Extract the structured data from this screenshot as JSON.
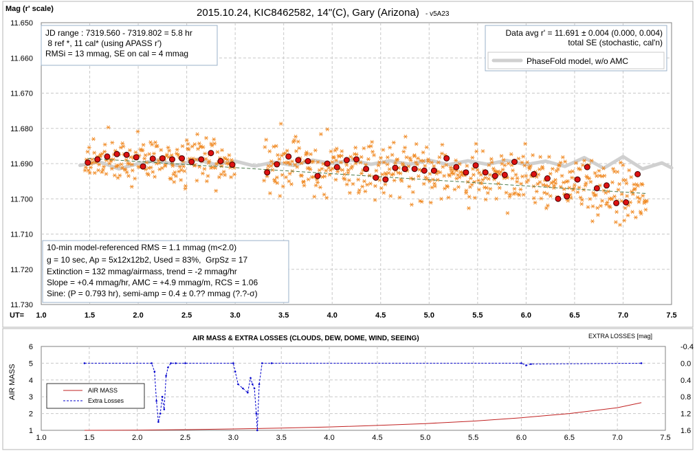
{
  "chart_data": [
    {
      "type": "scatter",
      "title": "2015.10.24, KIC8462582, 14\"(C), Gary (Arizona)",
      "title_suffix": "- v5A23",
      "ylabel": "Mag (r' scale)",
      "xlabel_prefix": "UT=",
      "xlim": [
        1.0,
        7.5
      ],
      "ylim": [
        11.65,
        11.73
      ],
      "y_inverted": true,
      "grid": true,
      "x_ticks": [
        "1.0",
        "1.5",
        "2.0",
        "2.5",
        "3.0",
        "3.5",
        "4.0",
        "4.5",
        "5.0",
        "5.5",
        "6.0",
        "6.5",
        "7.0",
        "7.5"
      ],
      "y_ticks": [
        "11.650",
        "11.660",
        "11.670",
        "11.680",
        "11.690",
        "11.700",
        "11.710",
        "11.720",
        "11.730"
      ],
      "info_top_left": [
        "JD range : 7319.560 - 7319.802 = 5.8 hr",
        " 8 ref *, 11 cal* (using APASS r')",
        "RMSi = 13 mmag, SE on cal = 4 mmag"
      ],
      "info_top_right": [
        "Data avg r' = 11.691 ± 0.004 (0.000, 0.004)",
        "total SE (stochastic, cal'n)"
      ],
      "legend": {
        "model_label": "PhaseFold model, w/o AMC",
        "position": "top-right"
      },
      "info_bottom_left": [
        "10-min model-referenced RMS = 1.1 mmag (m<2.0)",
        "g = 10 sec, Ap = 5x12x12b2, Used = 83%,  GrpSz = 17",
        "Extinction = 132 mmag/airmass, trend = -2 mmag/hr",
        "Slope = +0.4 mmag/hr, AMC = +4.9 mmag/m, RCS = 1.06",
        "Sine: (P = 0.793 hr), semi-amp = 0.4 ± 0.?? mmag (?.?-σ)"
      ],
      "colors": {
        "raw": "#f08a24",
        "binned_fill": "#dd1111",
        "binned_stroke": "#400000",
        "model": "#d0d0d0",
        "trend": "#4a7a4a"
      },
      "raw_bands": [
        {
          "x_start": 1.45,
          "x_end": 3.0,
          "center_start": 11.6885,
          "center_end": 11.6895,
          "spread": 0.0045
        },
        {
          "x_start": 3.3,
          "x_end": 6.0,
          "center_start": 11.6905,
          "center_end": 11.693,
          "spread": 0.0055
        },
        {
          "x_start": 6.0,
          "x_end": 7.25,
          "center_start": 11.694,
          "center_end": 11.699,
          "spread": 0.0055
        }
      ],
      "binned": {
        "x": [
          1.48,
          1.58,
          1.68,
          1.78,
          1.88,
          1.98,
          2.05,
          2.15,
          2.25,
          2.35,
          2.45,
          2.55,
          2.65,
          2.75,
          2.85,
          2.97,
          3.33,
          3.43,
          3.55,
          3.65,
          3.75,
          3.85,
          3.95,
          4.05,
          4.15,
          4.25,
          4.35,
          4.45,
          4.55,
          4.65,
          4.75,
          4.85,
          4.95,
          5.05,
          5.18,
          5.28,
          5.38,
          5.48,
          5.58,
          5.68,
          5.78,
          5.88,
          6.08,
          6.22,
          6.33,
          6.42,
          6.53,
          6.63,
          6.73,
          6.83,
          6.93,
          7.03,
          7.15
        ],
        "y": [
          11.6897,
          11.6888,
          11.688,
          11.6873,
          11.6875,
          11.6882,
          11.6908,
          11.6886,
          11.6885,
          11.6888,
          11.6885,
          11.6895,
          11.6888,
          11.687,
          11.6893,
          11.6903,
          11.6925,
          11.6902,
          11.688,
          11.689,
          11.6893,
          11.6935,
          11.69,
          11.691,
          11.689,
          11.6888,
          11.6915,
          11.694,
          11.6945,
          11.6912,
          11.6915,
          11.6915,
          11.692,
          11.692,
          11.6885,
          11.691,
          11.6925,
          11.6905,
          11.6925,
          11.6935,
          11.6932,
          11.6895,
          11.693,
          11.6942,
          11.7,
          11.6993,
          11.6945,
          11.691,
          11.697,
          11.6962,
          11.7012,
          11.701,
          11.693
        ]
      },
      "model": {
        "x": [
          1.4,
          1.6,
          1.8,
          2.0,
          2.2,
          2.4,
          2.6,
          2.8,
          3.0,
          3.2,
          3.4,
          3.6,
          3.8,
          4.0,
          4.2,
          4.4,
          4.6,
          4.8,
          5.0,
          5.2,
          5.4,
          5.6,
          5.8,
          6.0,
          6.2,
          6.4,
          6.6,
          6.8,
          7.0,
          7.2,
          7.4,
          7.5
        ],
        "y": [
          11.6905,
          11.6895,
          11.6915,
          11.69,
          11.689,
          11.6905,
          11.6888,
          11.6903,
          11.6893,
          11.6907,
          11.6896,
          11.6905,
          11.689,
          11.69,
          11.689,
          11.6902,
          11.6892,
          11.6902,
          11.689,
          11.6903,
          11.6892,
          11.6902,
          11.6891,
          11.6903,
          11.6893,
          11.6908,
          11.6883,
          11.6913,
          11.688,
          11.6915,
          11.6898,
          11.6912
        ]
      },
      "trend": {
        "x": [
          1.48,
          7.25
        ],
        "y": [
          11.6885,
          11.6985
        ]
      }
    },
    {
      "type": "line",
      "title": "AIR MASS & EXTRA LOSSES (CLOUDS, DEW, DOME, WIND, SEEING)",
      "ylabel": "AIR MASS",
      "y2label": "EXTRA LOSSES [mag]",
      "xlim": [
        1.0,
        7.5
      ],
      "ylim": [
        1,
        6
      ],
      "y2lim": [
        1.6,
        -0.4
      ],
      "x_ticks": [
        "1.0",
        "1.5",
        "2.0",
        "2.5",
        "3.0",
        "3.5",
        "4.0",
        "4.5",
        "5.0",
        "5.5",
        "6.0",
        "6.5",
        "7.0",
        "7.5"
      ],
      "y_ticks": [
        "1",
        "2",
        "3",
        "4",
        "5",
        "6"
      ],
      "y2_ticks": [
        "-0.4",
        "0.0",
        "0.4",
        "0.8",
        "1.2",
        "1.6"
      ],
      "legend": {
        "position": "left"
      },
      "series": [
        {
          "name": "AIR MASS",
          "color": "#c02020",
          "x": [
            1.45,
            2.0,
            2.5,
            3.0,
            3.5,
            4.0,
            4.5,
            5.0,
            5.5,
            6.0,
            6.5,
            7.0,
            7.25
          ],
          "y": [
            1.0,
            1.01,
            1.04,
            1.08,
            1.13,
            1.2,
            1.29,
            1.4,
            1.55,
            1.75,
            2.0,
            2.35,
            2.65
          ]
        },
        {
          "name": "Extra Losses",
          "color": "#0000cc",
          "x": [
            1.45,
            2.15,
            2.18,
            2.2,
            2.22,
            2.24,
            2.26,
            2.28,
            2.3,
            2.32,
            2.35,
            2.4,
            2.5,
            3.0,
            3.02,
            3.05,
            3.1,
            3.15,
            3.18,
            3.2,
            3.22,
            3.24,
            3.25,
            3.27,
            3.3,
            3.4,
            6.0,
            6.05,
            6.1,
            7.25
          ],
          "y": [
            0.0,
            0.0,
            0.2,
            0.9,
            1.4,
            1.2,
            0.8,
            1.1,
            0.3,
            0.1,
            0.0,
            0.0,
            0.0,
            0.0,
            0.2,
            0.5,
            0.6,
            0.7,
            0.35,
            0.5,
            0.6,
            1.2,
            1.6,
            0.5,
            0.0,
            0.0,
            0.0,
            0.05,
            0.02,
            0.0
          ]
        }
      ]
    }
  ]
}
